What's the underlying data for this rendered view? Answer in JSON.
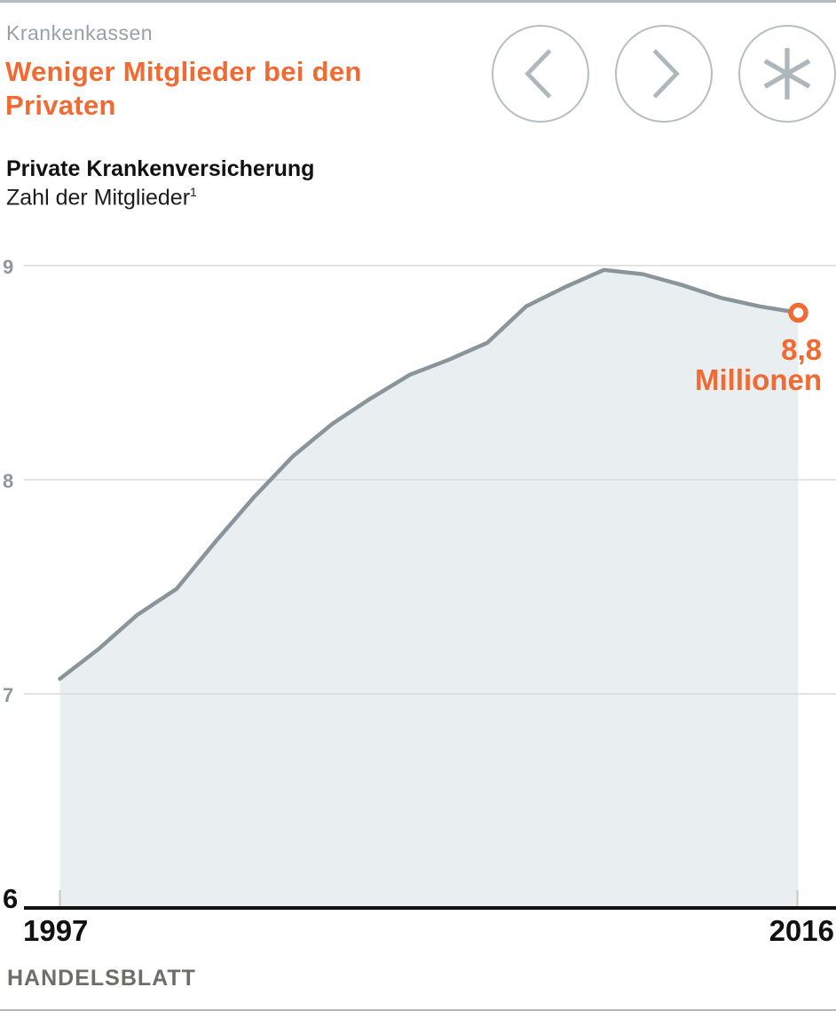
{
  "header": {
    "kicker": "Krankenkassen",
    "title": "Weniger Mitglieder bei den Privaten"
  },
  "subtitle": {
    "line1": "Private Krankenversicherung",
    "line2": "Zahl der Mitglieder",
    "footnote_mark": "1"
  },
  "nav": {
    "buttons": [
      {
        "name": "previous",
        "icon": "chevron-left-icon"
      },
      {
        "name": "next",
        "icon": "chevron-right-icon"
      },
      {
        "name": "related",
        "icon": "asterisk-icon"
      }
    ]
  },
  "chart_data": {
    "type": "area",
    "title": "Private Krankenversicherung",
    "subtitle": "Zahl der Mitglieder",
    "x": [
      1997,
      1998,
      1999,
      2000,
      2001,
      2002,
      2003,
      2004,
      2005,
      2006,
      2007,
      2008,
      2009,
      2010,
      2011,
      2012,
      2013,
      2014,
      2015,
      2016
    ],
    "values": [
      7.07,
      7.21,
      7.37,
      7.49,
      7.71,
      7.92,
      8.11,
      8.26,
      8.38,
      8.49,
      8.56,
      8.64,
      8.81,
      8.9,
      8.98,
      8.96,
      8.91,
      8.85,
      8.81,
      8.78
    ],
    "unit": "Millionen",
    "ylim": [
      6,
      9
    ],
    "yticks": [
      9,
      8,
      7,
      6
    ],
    "xtick_labels": [
      "1997",
      "2016"
    ],
    "grid": true,
    "legend": "none",
    "annotation": {
      "value": "8,8",
      "unit": "Millionen"
    },
    "colors": {
      "accent": "#f06a32",
      "line": "#8a959b",
      "area": "#e9eff1",
      "grid": "#d9dcdd",
      "axis": "#121212",
      "tick": "#c3c9cc"
    }
  },
  "footer": {
    "source": "HANDELSBLATT"
  }
}
